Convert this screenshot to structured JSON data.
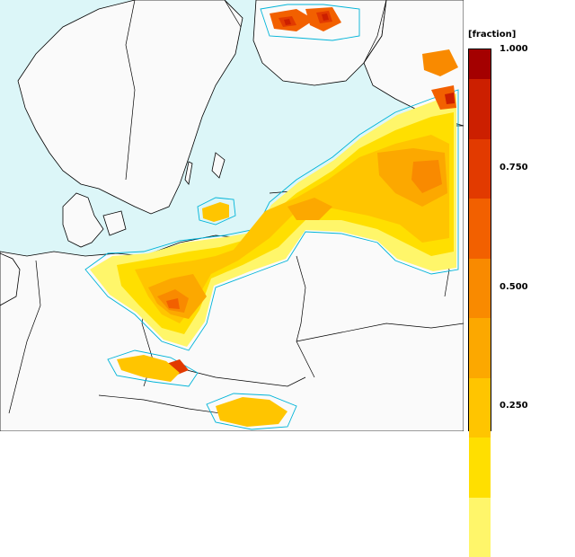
{
  "legend": {
    "unit_label": "[fraction]",
    "ticks": [
      "1.000",
      "0.750",
      "0.500",
      "0.250"
    ],
    "colors_top_to_bottom": [
      "#a40000",
      "#cc1f00",
      "#e23a00",
      "#f26000",
      "#f98a00",
      "#fca800",
      "#ffc500",
      "#ffdf00",
      "#fff66a"
    ]
  },
  "colors": {
    "sea": "#dcf6f8",
    "land": "#fafafa",
    "coastline": "#000000",
    "contour": "#00b4d8"
  }
}
